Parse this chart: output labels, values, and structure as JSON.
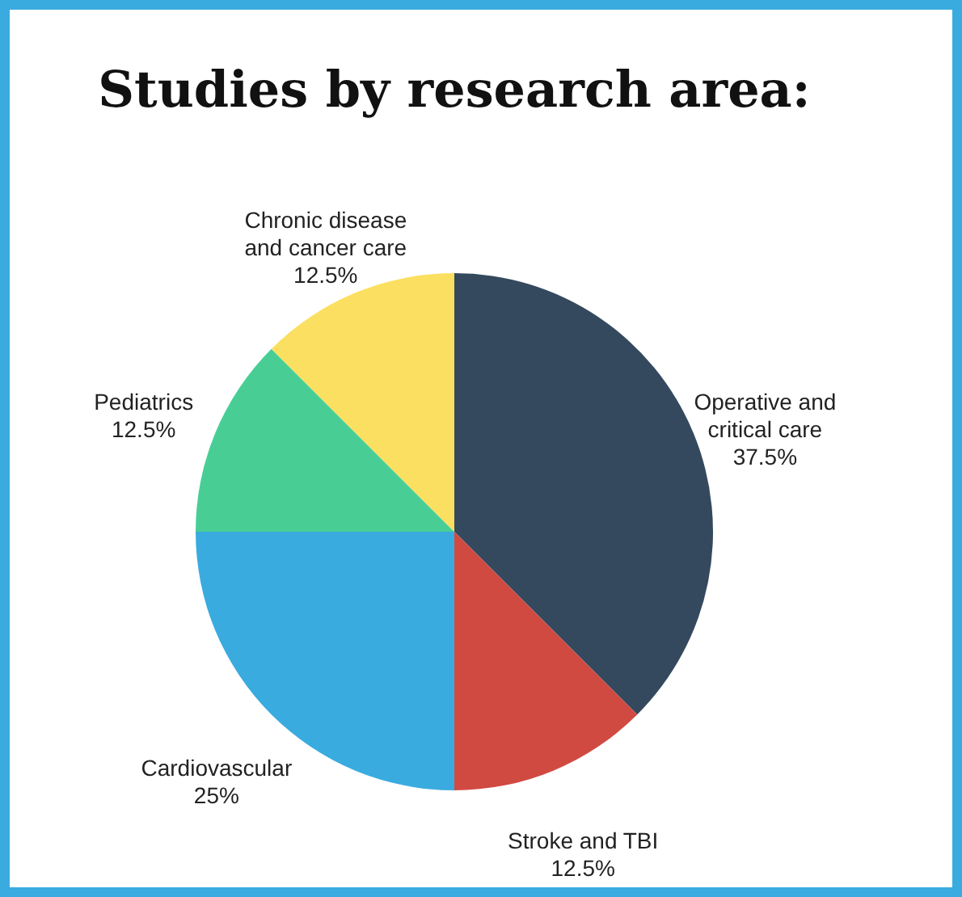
{
  "chart_data": {
    "type": "pie",
    "title": "Studies by research area:",
    "categories": [
      "Operative and critical care",
      "Stroke and TBI",
      "Cardiovascular",
      "Pediatrics",
      "Chronic disease and cancer care"
    ],
    "values": [
      37.5,
      12.5,
      25,
      12.5,
      12.5
    ],
    "value_labels": [
      "37.5%",
      "12.5%",
      "25%",
      "12.5%",
      "12.5%"
    ],
    "colors": [
      "#34495e",
      "#d04a42",
      "#3aabdf",
      "#48ce95",
      "#fbdf60"
    ],
    "legend": false
  }
}
